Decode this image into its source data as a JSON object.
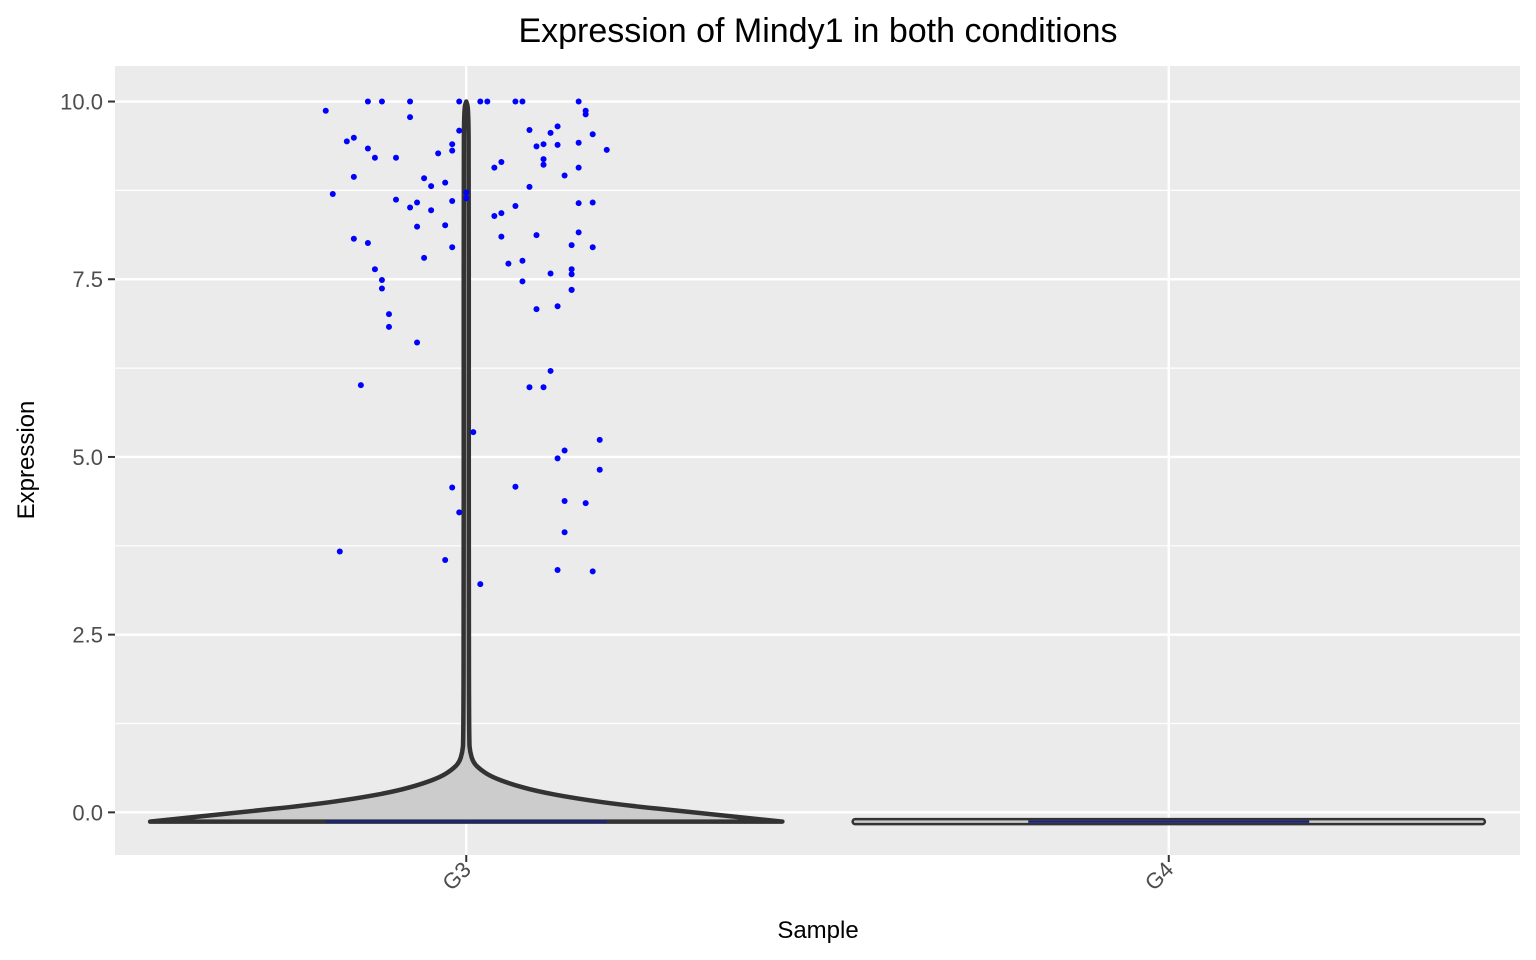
{
  "chart_data": {
    "type": "violin",
    "title": "Expression of Mindy1 in both conditions",
    "xlabel": "Sample",
    "ylabel": "Expression",
    "categories": [
      "G3",
      "G4"
    ],
    "ylim": [
      -0.6,
      10.5
    ],
    "yticks": [
      0.0,
      2.5,
      5.0,
      7.5,
      10.0
    ],
    "ytick_labels": [
      "0.0",
      "2.5",
      "5.0",
      "7.5",
      "10.0"
    ],
    "grid": true,
    "colors": {
      "panel": "#ebebeb",
      "grid": "#ffffff",
      "violin_fill": "#cccccc",
      "violin_stroke": "#333333",
      "points": "#0000ff",
      "median": "#1a237e"
    },
    "violins": [
      {
        "category": "G3",
        "min": -0.13,
        "max": 10.0,
        "median": -0.13,
        "max_half_width_fraction": 0.45,
        "density_profile": [
          [
            -0.13,
            1.0
          ],
          [
            0.0,
            0.72
          ],
          [
            0.1,
            0.5
          ],
          [
            0.2,
            0.34
          ],
          [
            0.3,
            0.22
          ],
          [
            0.4,
            0.14
          ],
          [
            0.5,
            0.08
          ],
          [
            0.6,
            0.045
          ],
          [
            0.7,
            0.022
          ],
          [
            0.85,
            0.012
          ],
          [
            1.0,
            0.009
          ],
          [
            3.0,
            0.008
          ],
          [
            6.0,
            0.008
          ],
          [
            9.0,
            0.008
          ],
          [
            9.9,
            0.007
          ],
          [
            10.0,
            0.0
          ]
        ],
        "points": [
          [
            -0.2,
            9.87
          ],
          [
            -0.19,
            8.7
          ],
          [
            -0.18,
            3.67
          ],
          [
            -0.17,
            9.44
          ],
          [
            -0.16,
            9.49
          ],
          [
            -0.16,
            8.07
          ],
          [
            -0.16,
            8.94
          ],
          [
            -0.15,
            6.01
          ],
          [
            -0.14,
            8.01
          ],
          [
            -0.14,
            9.34
          ],
          [
            -0.14,
            10.0
          ],
          [
            -0.13,
            7.64
          ],
          [
            -0.13,
            9.21
          ],
          [
            -0.12,
            7.37
          ],
          [
            -0.12,
            10.0
          ],
          [
            -0.12,
            7.49
          ],
          [
            -0.11,
            7.01
          ],
          [
            -0.11,
            6.83
          ],
          [
            -0.1,
            9.21
          ],
          [
            -0.1,
            8.62
          ],
          [
            -0.08,
            10.0
          ],
          [
            -0.08,
            9.78
          ],
          [
            -0.08,
            8.51
          ],
          [
            -0.07,
            8.58
          ],
          [
            -0.07,
            8.24
          ],
          [
            -0.07,
            6.61
          ],
          [
            -0.06,
            7.8
          ],
          [
            -0.06,
            8.92
          ],
          [
            -0.05,
            8.47
          ],
          [
            -0.05,
            8.81
          ],
          [
            -0.04,
            9.27
          ],
          [
            -0.03,
            8.86
          ],
          [
            -0.03,
            8.26
          ],
          [
            -0.03,
            3.55
          ],
          [
            -0.02,
            7.95
          ],
          [
            -0.02,
            4.57
          ],
          [
            -0.02,
            9.31
          ],
          [
            -0.02,
            8.6
          ],
          [
            -0.02,
            9.4
          ],
          [
            -0.01,
            4.22
          ],
          [
            -0.01,
            10.0
          ],
          [
            -0.01,
            9.59
          ],
          [
            0.0,
            8.72
          ],
          [
            0.0,
            8.64
          ],
          [
            0.01,
            5.35
          ],
          [
            0.02,
            3.21
          ],
          [
            0.02,
            10.0
          ],
          [
            0.03,
            10.0
          ],
          [
            0.04,
            9.07
          ],
          [
            0.04,
            8.39
          ],
          [
            0.05,
            8.43
          ],
          [
            0.05,
            8.1
          ],
          [
            0.05,
            9.15
          ],
          [
            0.06,
            7.72
          ],
          [
            0.07,
            8.53
          ],
          [
            0.07,
            10.0
          ],
          [
            0.07,
            4.58
          ],
          [
            0.08,
            10.0
          ],
          [
            0.08,
            7.76
          ],
          [
            0.08,
            7.47
          ],
          [
            0.09,
            8.8
          ],
          [
            0.09,
            5.98
          ],
          [
            0.09,
            9.6
          ],
          [
            0.1,
            8.12
          ],
          [
            0.1,
            7.08
          ],
          [
            0.1,
            9.37
          ],
          [
            0.11,
            9.4
          ],
          [
            0.11,
            9.11
          ],
          [
            0.11,
            5.98
          ],
          [
            0.11,
            9.19
          ],
          [
            0.12,
            6.21
          ],
          [
            0.12,
            7.58
          ],
          [
            0.12,
            9.56
          ],
          [
            0.13,
            9.65
          ],
          [
            0.13,
            7.12
          ],
          [
            0.13,
            9.39
          ],
          [
            0.13,
            4.98
          ],
          [
            0.13,
            3.41
          ],
          [
            0.14,
            4.38
          ],
          [
            0.14,
            5.09
          ],
          [
            0.14,
            3.94
          ],
          [
            0.14,
            8.96
          ],
          [
            0.15,
            7.98
          ],
          [
            0.15,
            7.64
          ],
          [
            0.15,
            7.35
          ],
          [
            0.15,
            7.35
          ],
          [
            0.15,
            7.57
          ],
          [
            0.16,
            8.16
          ],
          [
            0.16,
            9.42
          ],
          [
            0.16,
            8.57
          ],
          [
            0.16,
            10.0
          ],
          [
            0.16,
            9.07
          ],
          [
            0.17,
            4.35
          ],
          [
            0.17,
            9.87
          ],
          [
            0.17,
            9.82
          ],
          [
            0.18,
            7.95
          ],
          [
            0.18,
            9.54
          ],
          [
            0.18,
            8.58
          ],
          [
            0.18,
            3.39
          ],
          [
            0.19,
            5.24
          ],
          [
            0.19,
            4.82
          ],
          [
            0.2,
            9.32
          ]
        ]
      },
      {
        "category": "G4",
        "min": -0.13,
        "max": -0.13,
        "median": -0.13,
        "max_half_width_fraction": 0.45,
        "points": []
      }
    ]
  }
}
